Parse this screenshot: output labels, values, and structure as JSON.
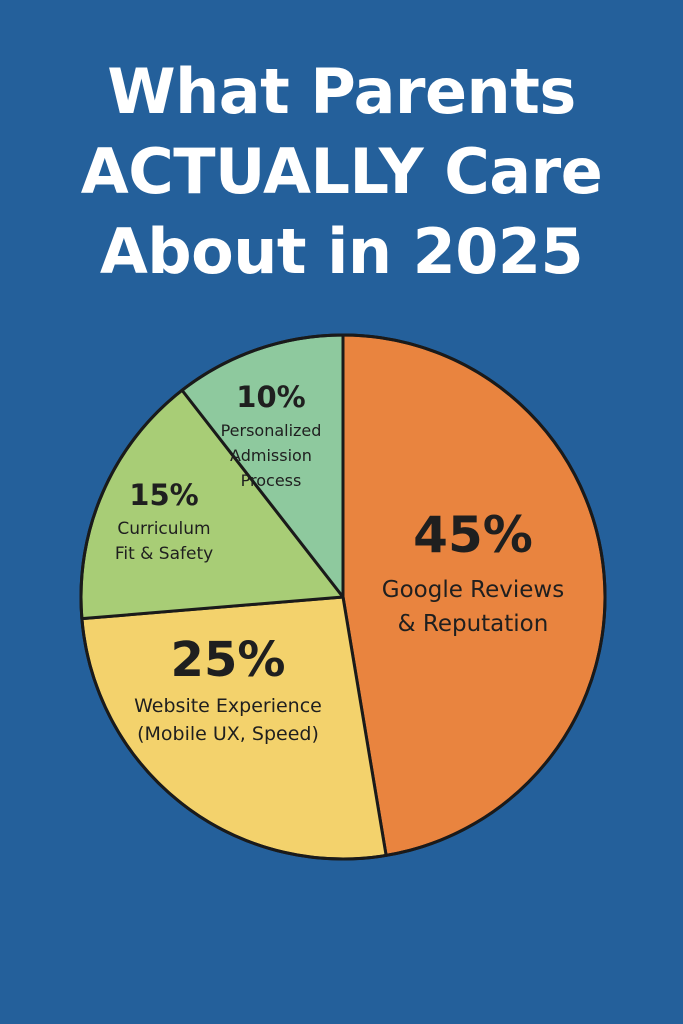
{
  "colors": {
    "background": "#24609b",
    "outline": "#1a1a1a"
  },
  "title": {
    "lines": [
      "What Parents",
      "ACTUALLY Care",
      "About in 2025"
    ]
  },
  "chart_data": {
    "type": "pie",
    "title": "What Parents ACTUALLY Care About in 2025",
    "start": "12 o'clock",
    "direction": "clockwise",
    "slices": [
      {
        "value": 45,
        "percent_label": "45%",
        "label_lines": [
          "Google Reviews",
          "& Reputation"
        ],
        "color": "#e9843f"
      },
      {
        "value": 25,
        "percent_label": "25%",
        "label_lines": [
          "Website Experience",
          "(Mobile UX, Speed)"
        ],
        "color": "#f3d26c"
      },
      {
        "value": 15,
        "percent_label": "15%",
        "label_lines": [
          "Curriculum",
          "Fit & Safety"
        ],
        "color": "#a8cd76"
      },
      {
        "value": 10,
        "percent_label": "10%",
        "label_lines": [
          "Personalized",
          "Admission",
          "Process"
        ],
        "color": "#8ec99e"
      }
    ]
  }
}
